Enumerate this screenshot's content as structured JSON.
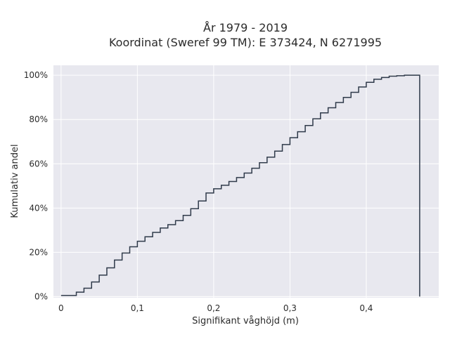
{
  "chart_data": {
    "type": "line",
    "subtype": "step-ecdf",
    "title_line1": "År 1979 - 2019",
    "title_line2": "Koordinat (Sweref 99 TM): E 373424, N 6271995",
    "xlabel": "Signifikant våghöjd (m)",
    "ylabel": "Kumulativ andel",
    "xlim": [
      -0.01,
      0.495
    ],
    "ylim": [
      -0.005,
      1.045
    ],
    "x_ticks": [
      {
        "value": 0,
        "label": "0"
      },
      {
        "value": 0.1,
        "label": "0,1"
      },
      {
        "value": 0.2,
        "label": "0,2"
      },
      {
        "value": 0.3,
        "label": "0,3"
      },
      {
        "value": 0.4,
        "label": "0,4"
      }
    ],
    "y_ticks": [
      {
        "value": 0,
        "label": "0%"
      },
      {
        "value": 0.2,
        "label": "20%"
      },
      {
        "value": 0.4,
        "label": "40%"
      },
      {
        "value": 0.6,
        "label": "60%"
      },
      {
        "value": 0.8,
        "label": "80%"
      },
      {
        "value": 1.0,
        "label": "100%"
      }
    ],
    "grid": true,
    "colors": {
      "background": "#e8e8ef",
      "grid": "#ffffff",
      "line": "#2f3a4a"
    },
    "x": [
      0.01,
      0.02,
      0.03,
      0.04,
      0.05,
      0.06,
      0.07,
      0.08,
      0.09,
      0.1,
      0.11,
      0.12,
      0.13,
      0.14,
      0.15,
      0.16,
      0.17,
      0.18,
      0.19,
      0.2,
      0.21,
      0.22,
      0.23,
      0.24,
      0.25,
      0.26,
      0.27,
      0.28,
      0.29,
      0.3,
      0.31,
      0.32,
      0.33,
      0.34,
      0.35,
      0.36,
      0.37,
      0.38,
      0.39,
      0.4,
      0.41,
      0.42,
      0.43,
      0.44,
      0.45,
      0.46,
      0.47
    ],
    "y": [
      0.005,
      0.02,
      0.038,
      0.066,
      0.097,
      0.13,
      0.165,
      0.197,
      0.225,
      0.25,
      0.27,
      0.29,
      0.31,
      0.325,
      0.343,
      0.367,
      0.397,
      0.432,
      0.468,
      0.487,
      0.503,
      0.52,
      0.538,
      0.558,
      0.58,
      0.605,
      0.63,
      0.657,
      0.687,
      0.718,
      0.745,
      0.773,
      0.803,
      0.83,
      0.853,
      0.877,
      0.9,
      0.923,
      0.947,
      0.968,
      0.982,
      0.99,
      0.996,
      0.998,
      1.0,
      1.0,
      1.0
    ]
  }
}
